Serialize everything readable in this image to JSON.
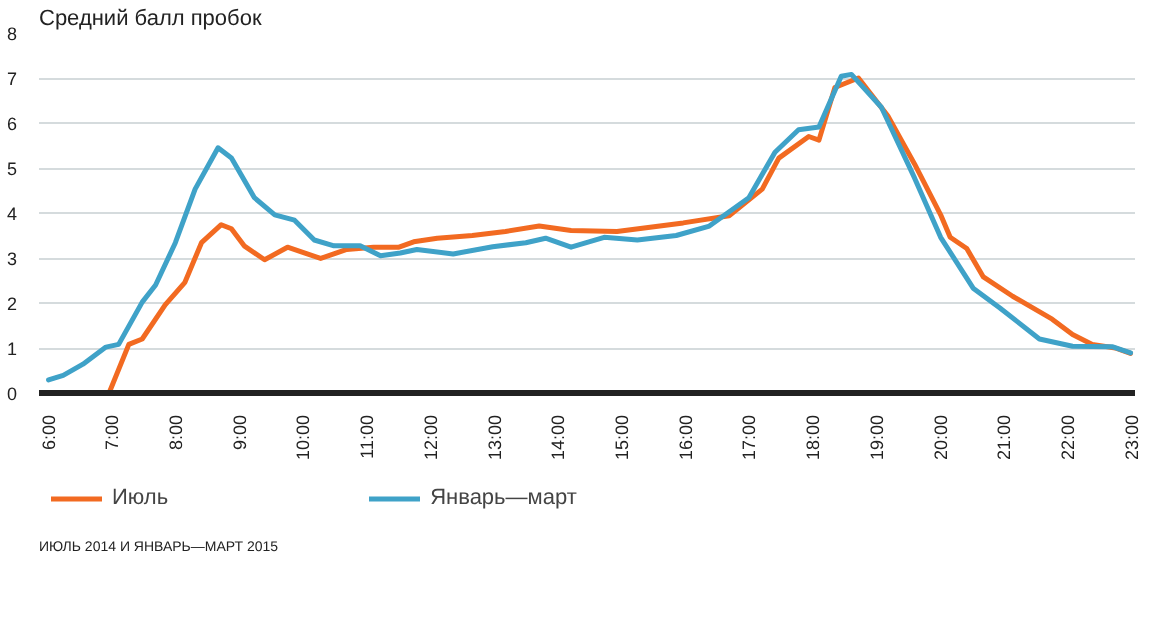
{
  "chart_data": {
    "type": "line",
    "ylabel": "Средний балл пробок",
    "annotations": [
      "ИЮЛЬ 2014 И ЯНВАРЬ—МАРТ 2015"
    ],
    "xlim": [
      5.85,
      23.05
    ],
    "ylim": [
      0,
      8
    ],
    "yticks": [
      0,
      1,
      2,
      3,
      4,
      5,
      6,
      7,
      8
    ],
    "xticks": [
      {
        "value": 6,
        "label": "6:00"
      },
      {
        "value": 7,
        "label": "7:00"
      },
      {
        "value": 8,
        "label": "8:00"
      },
      {
        "value": 9,
        "label": "9:00"
      },
      {
        "value": 10,
        "label": "10:00"
      },
      {
        "value": 11,
        "label": "11:00"
      },
      {
        "value": 12,
        "label": "12:00"
      },
      {
        "value": 13,
        "label": "13:00"
      },
      {
        "value": 14,
        "label": "14:00"
      },
      {
        "value": 15,
        "label": "15:00"
      },
      {
        "value": 16,
        "label": "16:00"
      },
      {
        "value": 17,
        "label": "17:00"
      },
      {
        "value": 18,
        "label": "18:00"
      },
      {
        "value": 19,
        "label": "19:00"
      },
      {
        "value": 20,
        "label": "20:00"
      },
      {
        "value": 21,
        "label": "21:00"
      },
      {
        "value": 22,
        "label": "22:00"
      },
      {
        "value": 23,
        "label": "23:00"
      }
    ],
    "grid": "y",
    "legend": "bottom",
    "line_style": "solid",
    "series": [
      {
        "name": "Июль",
        "color": "#f26a21",
        "x": [
          6.0,
          6.95,
          7.26,
          7.47,
          7.83,
          8.14,
          8.4,
          8.71,
          8.87,
          9.07,
          9.39,
          9.75,
          10.27,
          10.68,
          11.1,
          11.5,
          11.73,
          12.1,
          12.65,
          13.17,
          13.7,
          14.2,
          14.92,
          15.96,
          16.68,
          17.2,
          17.46,
          17.93,
          18.09,
          18.34,
          18.71,
          19.17,
          19.59,
          20.0,
          20.15,
          20.41,
          20.67,
          21.13,
          21.75,
          22.07,
          22.38,
          22.74,
          22.98
        ],
        "values": [
          0.0,
          0.0,
          1.08,
          1.2,
          1.96,
          2.46,
          3.34,
          3.74,
          3.65,
          3.27,
          2.96,
          3.24,
          2.99,
          3.19,
          3.24,
          3.24,
          3.36,
          3.44,
          3.5,
          3.59,
          3.71,
          3.61,
          3.59,
          3.78,
          3.94,
          4.53,
          5.22,
          5.7,
          5.62,
          6.79,
          7.0,
          6.16,
          5.09,
          3.96,
          3.46,
          3.21,
          2.58,
          2.15,
          1.64,
          1.3,
          1.08,
          1.0,
          0.88
        ]
      },
      {
        "name": "Январь—март",
        "color": "#3fa2c8",
        "x": [
          6.0,
          6.23,
          6.54,
          6.9,
          7.1,
          7.47,
          7.68,
          7.99,
          8.3,
          8.66,
          8.87,
          9.23,
          9.55,
          9.86,
          10.17,
          10.48,
          10.89,
          11.21,
          11.52,
          11.78,
          12.35,
          12.97,
          13.49,
          13.8,
          14.2,
          14.72,
          15.24,
          15.85,
          16.37,
          16.99,
          17.4,
          17.77,
          18.09,
          18.44,
          18.6,
          19.07,
          19.59,
          20.0,
          20.51,
          20.93,
          21.55,
          22.07,
          22.69,
          22.98
        ],
        "values": [
          0.29,
          0.39,
          0.64,
          1.02,
          1.08,
          2.02,
          2.4,
          3.34,
          4.53,
          5.45,
          5.22,
          4.34,
          3.96,
          3.84,
          3.4,
          3.27,
          3.27,
          3.05,
          3.11,
          3.19,
          3.09,
          3.25,
          3.34,
          3.44,
          3.24,
          3.46,
          3.4,
          3.5,
          3.71,
          4.34,
          5.35,
          5.85,
          5.91,
          7.04,
          7.08,
          6.35,
          4.78,
          3.46,
          2.33,
          1.89,
          1.2,
          1.04,
          1.03,
          0.89
        ]
      }
    ]
  }
}
